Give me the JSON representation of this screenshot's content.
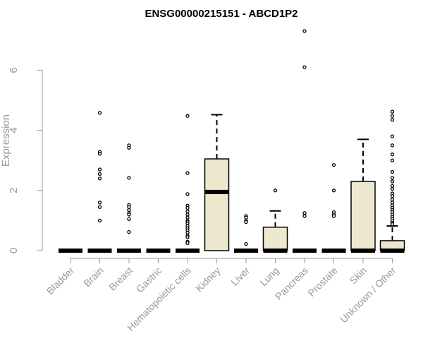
{
  "chart_data": {
    "type": "boxplot",
    "title": "ENSG00000215151 - ABCD1P2",
    "xlabel": "",
    "ylabel": "Expression",
    "ylim": [
      0,
      7.6
    ],
    "yticks": [
      0,
      2,
      4,
      6
    ],
    "fill_color": "#ede7cd",
    "categories": [
      "Bladder",
      "Brain",
      "Breast",
      "Gastric",
      "Hematopoietic cells",
      "Kidney",
      "Liver",
      "Lung",
      "Pancreas",
      "Prostate",
      "Skin",
      "Unknown / Other"
    ],
    "boxes": [
      {
        "name": "Bladder",
        "q1": 0,
        "median": 0,
        "q3": 0,
        "whisker_low": 0,
        "whisker_high": 0,
        "outliers": []
      },
      {
        "name": "Brain",
        "q1": 0,
        "median": 0,
        "q3": 0,
        "whisker_low": 0,
        "whisker_high": 0,
        "outliers": [
          4.58,
          3.28,
          3.22,
          2.7,
          2.55,
          2.4,
          1.6,
          1.45,
          1.0
        ]
      },
      {
        "name": "Breast",
        "q1": 0,
        "median": 0,
        "q3": 0,
        "whisker_low": 0,
        "whisker_high": 0,
        "outliers": [
          3.5,
          3.42,
          2.42,
          1.52,
          1.45,
          1.35,
          1.25,
          1.2,
          1.05,
          0.62
        ]
      },
      {
        "name": "Gastric",
        "q1": 0,
        "median": 0,
        "q3": 0,
        "whisker_low": 0,
        "whisker_high": 0,
        "outliers": []
      },
      {
        "name": "Hematopoietic cells",
        "q1": 0,
        "median": 0,
        "q3": 0,
        "whisker_low": 0,
        "whisker_high": 0,
        "outliers": [
          4.48,
          2.58,
          1.88,
          1.5,
          1.42,
          1.3,
          1.2,
          1.1,
          1.0,
          0.95,
          0.9,
          0.82,
          0.75,
          0.68,
          0.6,
          0.5,
          0.45,
          0.3,
          0.25
        ]
      },
      {
        "name": "Kidney",
        "q1": 0,
        "median": 1.95,
        "q3": 3.05,
        "whisker_low": 0,
        "whisker_high": 4.52,
        "outliers": []
      },
      {
        "name": "Liver",
        "q1": 0,
        "median": 0,
        "q3": 0,
        "whisker_low": 0,
        "whisker_high": 0,
        "outliers": [
          1.15,
          1.1,
          1.0,
          0.95,
          0.22
        ]
      },
      {
        "name": "Lung",
        "q1": 0,
        "median": 0,
        "q3": 0.78,
        "whisker_low": 0,
        "whisker_high": 1.32,
        "outliers": [
          2.0
        ]
      },
      {
        "name": "Pancreas",
        "q1": 0,
        "median": 0,
        "q3": 0,
        "whisker_low": 0,
        "whisker_high": 0,
        "outliers": [
          7.3,
          6.1,
          1.25,
          1.15
        ]
      },
      {
        "name": "Prostate",
        "q1": 0,
        "median": 0,
        "q3": 0,
        "whisker_low": 0,
        "whisker_high": 0,
        "outliers": [
          2.85,
          2.0,
          1.28,
          1.2,
          1.15
        ]
      },
      {
        "name": "Skin",
        "q1": 0,
        "median": 0,
        "q3": 2.3,
        "whisker_low": 0,
        "whisker_high": 3.7,
        "outliers": []
      },
      {
        "name": "Unknown / Other",
        "q1": 0,
        "median": 0,
        "q3": 0.33,
        "whisker_low": 0,
        "whisker_high": 0.82,
        "outliers": [
          4.62,
          4.48,
          4.35,
          3.8,
          3.5,
          3.2,
          3.0,
          2.62,
          2.42,
          2.3,
          2.15,
          2.05,
          1.9,
          1.82,
          1.7,
          1.6,
          1.5,
          1.42,
          1.35,
          1.28,
          1.2,
          1.12,
          1.05,
          0.98,
          0.92,
          0.88
        ]
      }
    ]
  }
}
